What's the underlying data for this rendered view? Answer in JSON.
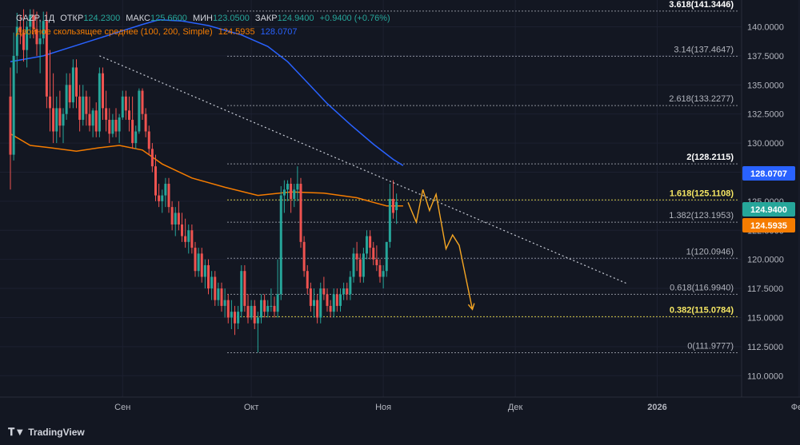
{
  "legend": {
    "symbol": "GAZP, 1Д",
    "open_label": "ОТКР",
    "open": "124.2300",
    "high_label": "МАКС",
    "high": "125.6600",
    "low_label": "МИН",
    "low": "123.0500",
    "close_label": "ЗАКР",
    "close": "124.9400",
    "change": "+0.9400 (+0.76%)",
    "ma_label": "Двойное скользящее среднее (100, 200, Simple)",
    "ma1": "124.5935",
    "ma2": "128.0707"
  },
  "brand": {
    "logo_icon": "tradingview-logo-icon",
    "name": "TradingView"
  },
  "colors": {
    "bg": "#131722",
    "up": "#26a69a",
    "down": "#ef5350",
    "ma100": "#f57c00",
    "ma200": "#2962ff",
    "fib": "#787b86",
    "projection": "#f5a623",
    "axis_text": "#b2b5be"
  },
  "chart_data": {
    "type": "candlestick",
    "ylim": [
      108.3,
      142.3
    ],
    "x_ticks": [
      {
        "label": "Сен",
        "i": 34
      },
      {
        "label": "Окт",
        "i": 73
      },
      {
        "label": "Ноя",
        "i": 113
      },
      {
        "label": "Дек",
        "i": 153
      },
      {
        "label": "2026",
        "i": 196
      },
      {
        "label": "Фев",
        "i": 239
      }
    ],
    "y_ticks": [
      "110.0000",
      "112.5000",
      "115.0000",
      "117.5000",
      "120.0000",
      "122.5000",
      "125.0000",
      "127.5000",
      "130.0000",
      "132.5000",
      "135.0000",
      "137.5000",
      "140.0000"
    ],
    "candles": [
      [
        134,
        136.5,
        126,
        129
      ],
      [
        129,
        139.5,
        128.5,
        137.5
      ],
      [
        137.5,
        141.2,
        136,
        140
      ],
      [
        140,
        141,
        138.5,
        139.5
      ],
      [
        139.5,
        141.5,
        137,
        138
      ],
      [
        138,
        140.5,
        136.5,
        140
      ],
      [
        140,
        141.5,
        139,
        141
      ],
      [
        141,
        141.5,
        139,
        139.8
      ],
      [
        139.8,
        141.3,
        137.5,
        138.5
      ],
      [
        138.5,
        140.5,
        136,
        139
      ],
      [
        139,
        141.3,
        138.5,
        140.5
      ],
      [
        140.5,
        141.3,
        133,
        134
      ],
      [
        134,
        138,
        131,
        133
      ],
      [
        133,
        136,
        130,
        131
      ],
      [
        131,
        134,
        130,
        133
      ],
      [
        133,
        134.5,
        130.5,
        131.5
      ],
      [
        131.5,
        133,
        130,
        132.5
      ],
      [
        132.5,
        136,
        132,
        135
      ],
      [
        135,
        136,
        133,
        133.5
      ],
      [
        133.5,
        137.2,
        133,
        136.5
      ],
      [
        136.5,
        137.2,
        133,
        134
      ],
      [
        134,
        135,
        131,
        132
      ],
      [
        132,
        135,
        131.5,
        134
      ],
      [
        134,
        134.5,
        131.5,
        132.5
      ],
      [
        132.5,
        134,
        131,
        131.5
      ],
      [
        131.5,
        133,
        130.5,
        132.8
      ],
      [
        132.8,
        133.5,
        130.5,
        131
      ],
      [
        131,
        136.5,
        130.5,
        136
      ],
      [
        136,
        136.5,
        132,
        133
      ],
      [
        133,
        134.5,
        131,
        132
      ],
      [
        132,
        133,
        130,
        130.8
      ],
      [
        130.8,
        132.5,
        130.5,
        132
      ],
      [
        132,
        133,
        130.5,
        131
      ],
      [
        131,
        132.5,
        130,
        132.2
      ],
      [
        132.2,
        134.5,
        132,
        134
      ],
      [
        134,
        134.5,
        132,
        132.8
      ],
      [
        132.8,
        134,
        131,
        132
      ],
      [
        132,
        134,
        129.5,
        130
      ],
      [
        130,
        131.5,
        129.5,
        131
      ],
      [
        131,
        134.7,
        130.8,
        134.5
      ],
      [
        134.5,
        134.7,
        132,
        132.5
      ],
      [
        132.5,
        133,
        130.5,
        131
      ],
      [
        131,
        131.5,
        129,
        129.5
      ],
      [
        129.5,
        130,
        127.5,
        128
      ],
      [
        128,
        129,
        125,
        125.5
      ],
      [
        125.5,
        126.5,
        124.5,
        125
      ],
      [
        125,
        126,
        124,
        125.5
      ],
      [
        125.5,
        127,
        124.5,
        126.5
      ],
      [
        126.5,
        127,
        124,
        124.5
      ],
      [
        124.5,
        125,
        122.5,
        123
      ],
      [
        123,
        124.5,
        122,
        124
      ],
      [
        124,
        125,
        122.5,
        123
      ],
      [
        123,
        124,
        121.5,
        122
      ],
      [
        122,
        123.5,
        121,
        121.5
      ],
      [
        121.5,
        123,
        120.5,
        122.5
      ],
      [
        122.5,
        123,
        120.5,
        121
      ],
      [
        121,
        121.5,
        118.5,
        119
      ],
      [
        119,
        121,
        118.5,
        120.5
      ],
      [
        120.5,
        121,
        118,
        118.5
      ],
      [
        118.5,
        120,
        117.5,
        119.5
      ],
      [
        119.5,
        120,
        117,
        117.5
      ],
      [
        117.5,
        119,
        116.5,
        118.5
      ],
      [
        118.5,
        119,
        116,
        116.5
      ],
      [
        116.5,
        118,
        116,
        117.5
      ],
      [
        117.5,
        118,
        115.5,
        116
      ],
      [
        116,
        117.5,
        115,
        116.5
      ],
      [
        116.5,
        117,
        114.5,
        115
      ],
      [
        115,
        116.5,
        114,
        115.5
      ],
      [
        115.5,
        116,
        113.5,
        114.5
      ],
      [
        114.5,
        116,
        114,
        115.5
      ],
      [
        115.5,
        119.5,
        115,
        119
      ],
      [
        119,
        119.5,
        115.5,
        116
      ],
      [
        116,
        117,
        114.5,
        115
      ],
      [
        115,
        116.5,
        114.8,
        116
      ],
      [
        116,
        116.5,
        114,
        114.5
      ],
      [
        114.5,
        115.5,
        112,
        115
      ],
      [
        115,
        117,
        114.5,
        116.5
      ],
      [
        116.5,
        117,
        115,
        115.5
      ],
      [
        115.5,
        116.5,
        115,
        116
      ],
      [
        116,
        117.5,
        115.5,
        116
      ],
      [
        116,
        116.8,
        115,
        115.5
      ],
      [
        115.5,
        120,
        115,
        117
      ],
      [
        117,
        126.3,
        116.5,
        125.5
      ],
      [
        125.5,
        126.8,
        124,
        126
      ],
      [
        126,
        126.8,
        125,
        126.5
      ],
      [
        126.5,
        127,
        124,
        125.2
      ],
      [
        125.2,
        126.5,
        124.5,
        126
      ],
      [
        126,
        128,
        125,
        126.5
      ],
      [
        126.5,
        127,
        121,
        121.5
      ],
      [
        121.5,
        122,
        118.5,
        119
      ],
      [
        119,
        119.5,
        117,
        117.5
      ],
      [
        117.5,
        118,
        115.5,
        116
      ],
      [
        116,
        117.5,
        115,
        116.5
      ],
      [
        116.5,
        117,
        114.5,
        115
      ],
      [
        115,
        118,
        114.5,
        117.5
      ],
      [
        117.5,
        118.5,
        116.5,
        117
      ],
      [
        117,
        117.5,
        115.5,
        116
      ],
      [
        116,
        116.5,
        115,
        115.5
      ],
      [
        115.5,
        117.5,
        115,
        117
      ],
      [
        117,
        117.5,
        115.5,
        116
      ],
      [
        116,
        117.5,
        115.5,
        117
      ],
      [
        117,
        118,
        116.5,
        117.5
      ],
      [
        117.5,
        118,
        116.5,
        117
      ],
      [
        117,
        119,
        116.5,
        118.5
      ],
      [
        118.5,
        121,
        118,
        120.5
      ],
      [
        120.5,
        121.5,
        119,
        120
      ],
      [
        120,
        120.5,
        118,
        118.5
      ],
      [
        118.5,
        121,
        118,
        120.5
      ],
      [
        120.5,
        122.5,
        120,
        122
      ],
      [
        122,
        122.5,
        120,
        121
      ],
      [
        121,
        121.5,
        119.5,
        120
      ],
      [
        120,
        121.2,
        119,
        119.5
      ],
      [
        119.5,
        120,
        118,
        118.5
      ],
      [
        118.5,
        119.5,
        117.5,
        119
      ],
      [
        119,
        121.5,
        118.5,
        121.5
      ],
      [
        121.5,
        126.5,
        121,
        125.2
      ],
      [
        125.2,
        126.8,
        123.5,
        124
      ],
      [
        124.23,
        125.66,
        123.05,
        124.94
      ]
    ],
    "ma100_anchors": [
      [
        0,
        130.8
      ],
      [
        6,
        129.8
      ],
      [
        12,
        129.6
      ],
      [
        20,
        129.3
      ],
      [
        27,
        129.6
      ],
      [
        33,
        129.8
      ],
      [
        40,
        129.4
      ],
      [
        46,
        128.2
      ],
      [
        55,
        127.0
      ],
      [
        65,
        126.2
      ],
      [
        75,
        125.5
      ],
      [
        85,
        125.8
      ],
      [
        95,
        125.7
      ],
      [
        105,
        125.3
      ],
      [
        110,
        124.9
      ],
      [
        114,
        124.6
      ],
      [
        119,
        124.59
      ]
    ],
    "ma200_anchors": [
      [
        0,
        137.0
      ],
      [
        10,
        137.5
      ],
      [
        20,
        138.4
      ],
      [
        30,
        139.3
      ],
      [
        40,
        140.2
      ],
      [
        45,
        140.6
      ],
      [
        52,
        140.5
      ],
      [
        60,
        140.1
      ],
      [
        70,
        139.3
      ],
      [
        78,
        138.3
      ],
      [
        84,
        137.0
      ],
      [
        90,
        135.2
      ],
      [
        96,
        133.4
      ],
      [
        103,
        131.6
      ],
      [
        110,
        129.9
      ],
      [
        116,
        128.6
      ],
      [
        119,
        128.07
      ]
    ],
    "fib_levels": [
      {
        "label": "3.618(141.3446)",
        "value": 141.3446,
        "highlight": true
      },
      {
        "label": "3.14(137.4647)",
        "value": 137.4647,
        "highlight": false
      },
      {
        "label": "2.618(133.2277)",
        "value": 133.2277,
        "highlight": false
      },
      {
        "label": "2(128.2115)",
        "value": 128.2115,
        "highlight": true
      },
      {
        "label": "1.618(125.1108)",
        "value": 125.1108,
        "highlight": "yellow"
      },
      {
        "label": "1.382(123.1953)",
        "value": 123.1953,
        "highlight": false
      },
      {
        "label": "1(120.0946)",
        "value": 120.0946,
        "highlight": false
      },
      {
        "label": "0.618(116.9940)",
        "value": 116.994,
        "highlight": false
      },
      {
        "label": "0.382(115.0784)",
        "value": 115.0784,
        "highlight": "yellow"
      },
      {
        "label": "0(111.9777)",
        "value": 111.9777,
        "highlight": false
      }
    ],
    "trendline": [
      [
        27,
        137.5
      ],
      [
        187,
        117.9
      ]
    ],
    "projection": [
      [
        120.5,
        124.9
      ],
      [
        123,
        123.2
      ],
      [
        125,
        126
      ],
      [
        127,
        124.2
      ],
      [
        129,
        125.6
      ],
      [
        132,
        120.9
      ],
      [
        134,
        122.1
      ],
      [
        136,
        121.2
      ],
      [
        140,
        115.7
      ]
    ],
    "price_badges": [
      {
        "value": "128.0707",
        "y": 128.0707,
        "color": "#2962ff"
      },
      {
        "value": "124.9400",
        "y": 124.94,
        "color": "#26a69a"
      },
      {
        "value": "124.5935",
        "y": 124.5935,
        "color": "#f57c00"
      }
    ]
  }
}
